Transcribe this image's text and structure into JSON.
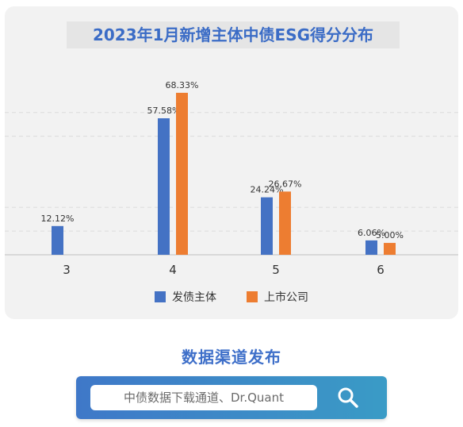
{
  "chart_data": {
    "type": "bar",
    "title": "2023年1月新增主体中债ESG得分分布",
    "categories": [
      "3",
      "4",
      "5",
      "6"
    ],
    "series": [
      {
        "name": "发债主体",
        "color": "#4472c4",
        "values": [
          12.12,
          57.58,
          24.24,
          6.06
        ],
        "labels": [
          "12.12%",
          "57.58%",
          "24.24%",
          "6.06%"
        ]
      },
      {
        "name": "上市公司",
        "color": "#ed7d31",
        "values": [
          null,
          68.33,
          26.67,
          5.0
        ],
        "labels": [
          "",
          "68.33%",
          "26.67%",
          "5.00%"
        ]
      }
    ],
    "ylim": [
      0,
      75
    ],
    "grid": true,
    "legend_position": "bottom"
  },
  "footer": {
    "channel_title": "数据渠道发布",
    "search_text": "中债数据下载通道、Dr.Quant"
  }
}
